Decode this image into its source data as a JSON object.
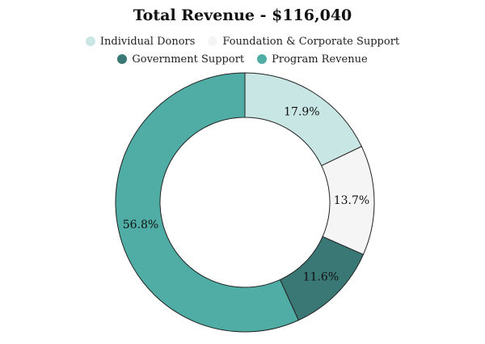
{
  "chart_data": {
    "type": "donut",
    "title": "Total Revenue - $116,040",
    "categories": [
      "Individual Donors",
      "Foundation & Corporate Support",
      "Government Support",
      "Program Revenue"
    ],
    "values": [
      17.9,
      13.7,
      11.6,
      56.8
    ],
    "value_labels": [
      "17.9%",
      "13.7%",
      "11.6%",
      "56.8%"
    ],
    "colors": [
      "#c8e6e4",
      "#f5f5f5",
      "#3a7876",
      "#4fada5"
    ]
  }
}
